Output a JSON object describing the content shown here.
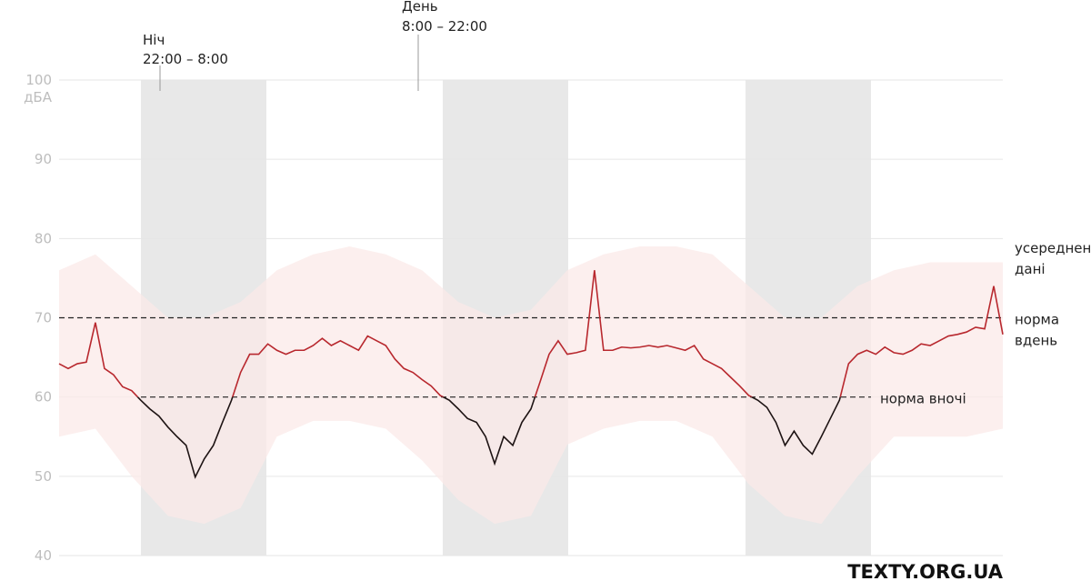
{
  "chart_data": {
    "type": "line",
    "ylim": [
      40,
      100
    ],
    "yticks": [
      40,
      50,
      60,
      70,
      80,
      90,
      100
    ],
    "y_unit": "дБА",
    "grid": true,
    "series": [
      {
        "name": [
          "усереднені",
          "дані"
        ],
        "color": "#b8282e",
        "color_below": "#1e1414",
        "values": [
          64.2,
          63.6,
          64.2,
          64.4,
          69.4,
          63.6,
          62.8,
          61.3,
          60.8,
          59.6,
          58.5,
          57.6,
          56.2,
          55.0,
          53.9,
          49.9,
          52.2,
          53.9,
          56.8,
          59.6,
          63.1,
          65.4,
          65.4,
          66.7,
          65.9,
          65.4,
          65.9,
          65.9,
          66.5,
          67.4,
          66.5,
          67.1,
          66.5,
          65.9,
          67.7,
          67.1,
          66.5,
          64.8,
          63.6,
          63.1,
          62.2,
          61.4,
          60.2,
          59.6,
          58.5,
          57.3,
          56.8,
          55.0,
          51.6,
          55.0,
          53.9,
          56.8,
          58.5,
          61.9,
          65.4,
          67.1,
          65.4,
          65.6,
          65.9,
          76.0,
          65.9,
          65.9,
          66.3,
          66.2,
          66.3,
          66.5,
          66.3,
          66.5,
          66.2,
          65.9,
          66.5,
          64.8,
          64.2,
          63.6,
          62.5,
          61.4,
          60.2,
          59.6,
          58.7,
          56.8,
          53.9,
          55.7,
          53.9,
          52.8,
          55.0,
          57.3,
          59.6,
          64.2,
          65.4,
          65.9,
          65.4,
          66.3,
          65.6,
          65.4,
          65.9,
          66.7,
          66.5,
          67.1,
          67.7,
          67.9,
          68.2,
          68.8,
          68.6,
          74.0,
          67.9
        ]
      }
    ],
    "range_band": {
      "color": "#fbe9e8",
      "high": [
        76,
        78,
        74,
        70,
        70,
        72,
        76,
        78,
        79,
        78,
        76,
        72,
        70,
        71,
        76,
        78,
        79,
        79,
        78,
        74,
        70,
        70,
        74,
        76,
        77,
        77,
        77
      ],
      "low": [
        55,
        56,
        50,
        45,
        44,
        46,
        55,
        57,
        57,
        56,
        52,
        47,
        44,
        45,
        54,
        56,
        57,
        57,
        55,
        49,
        45,
        44,
        50,
        55,
        55,
        55,
        56
      ]
    },
    "reference_lines": [
      {
        "label": [
          "норма",
          "вдень"
        ],
        "value": 70
      },
      {
        "label": [
          "норма вночі"
        ],
        "value": 60
      }
    ],
    "annotations": [
      {
        "lines": [
          "Ніч",
          "22:00 – 8:00"
        ]
      },
      {
        "lines": [
          "День",
          "8:00 – 22:00"
        ]
      }
    ],
    "source": "TEXTY.ORG.UA"
  }
}
